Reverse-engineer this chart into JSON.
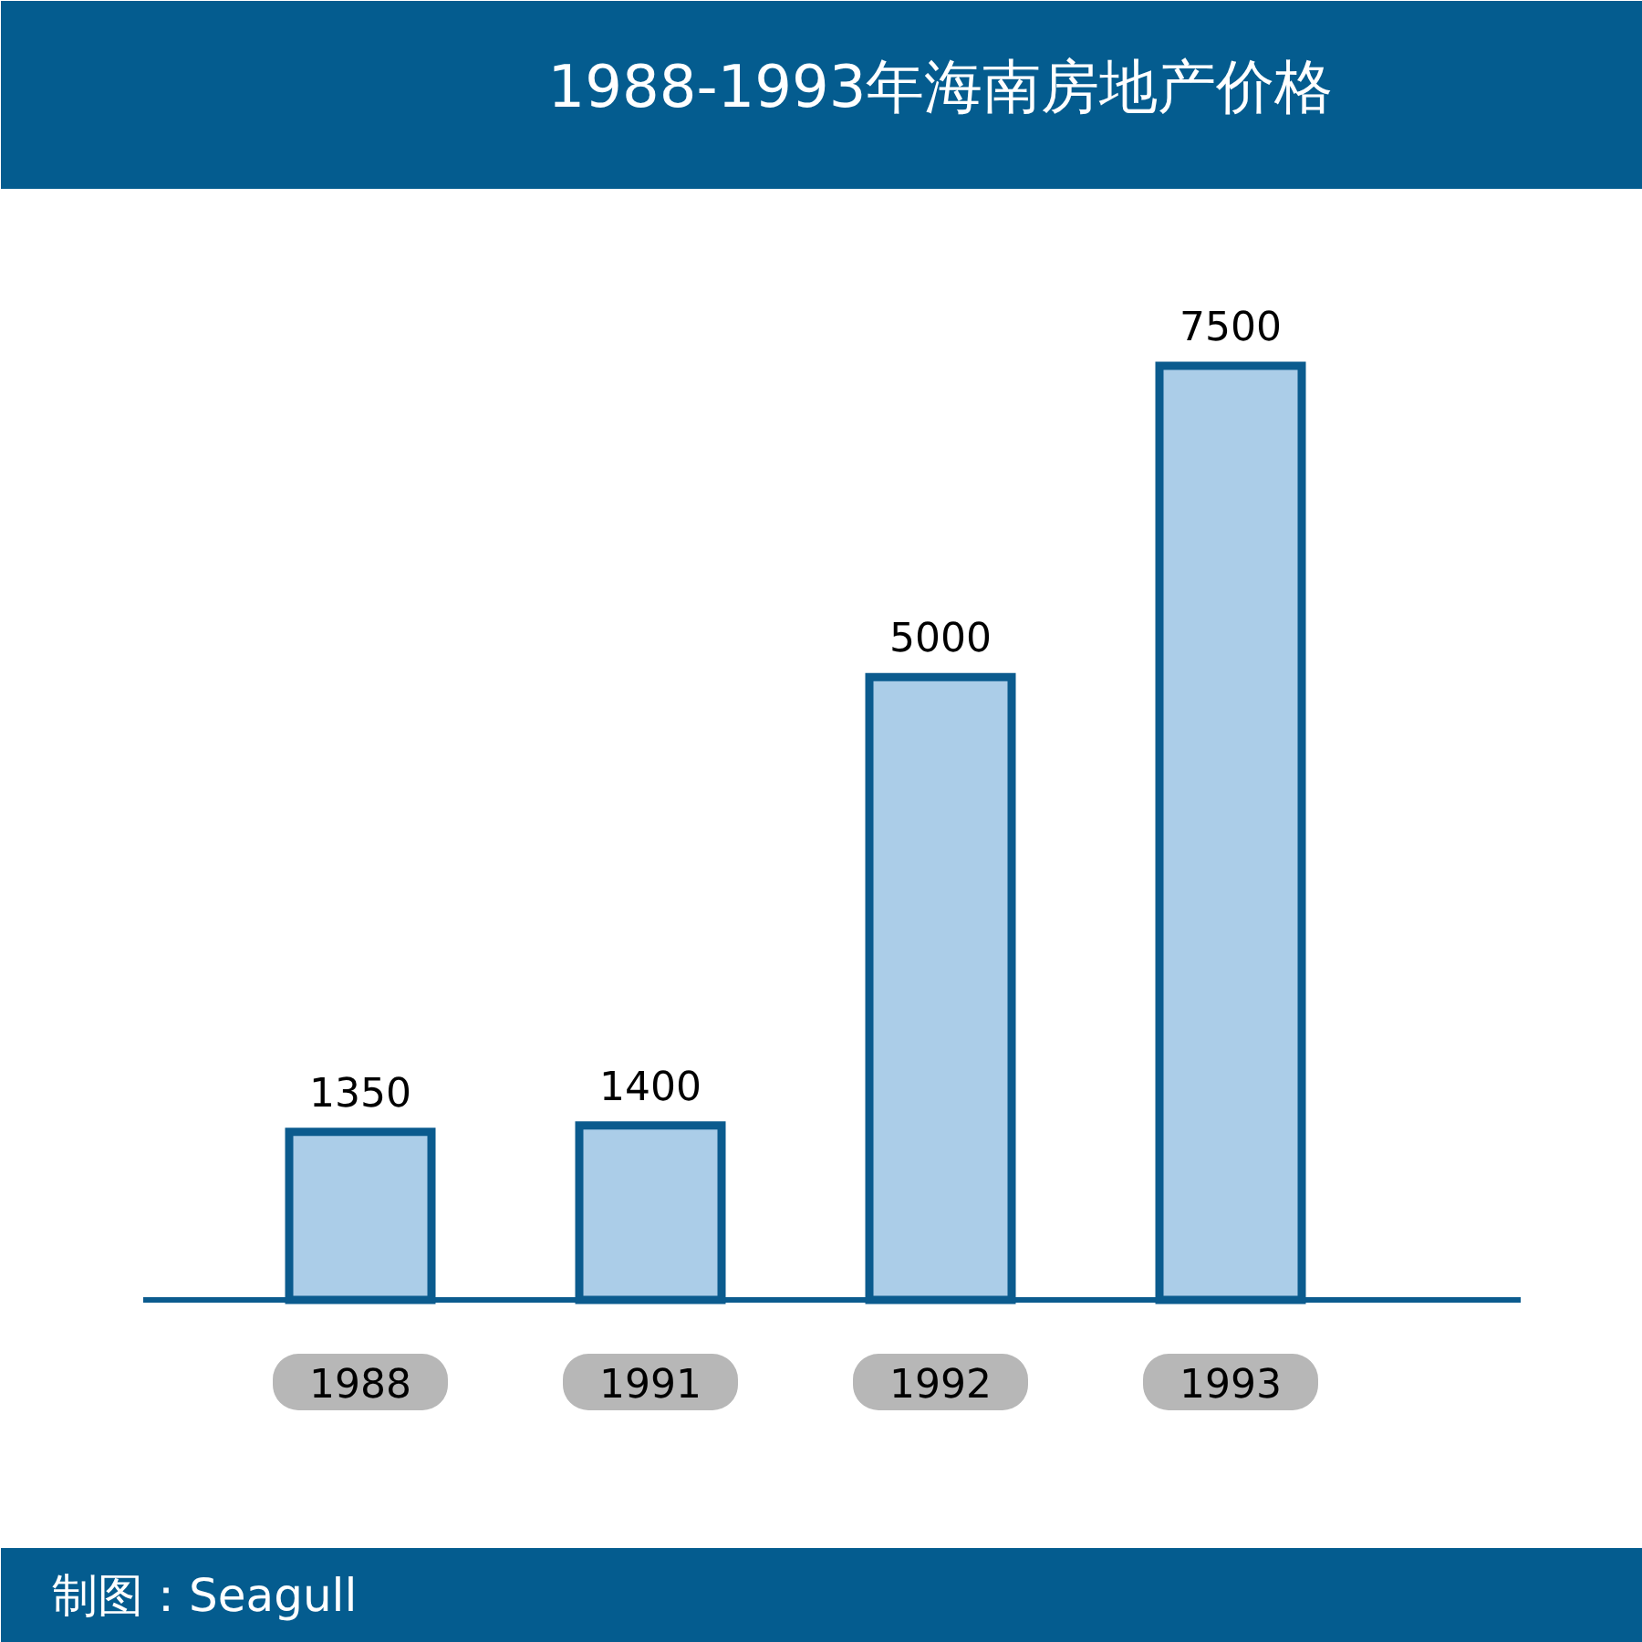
{
  "chart_data": {
    "type": "bar",
    "title": "1988-1993年海南房地产价格",
    "categories": [
      "1988",
      "1991",
      "1992",
      "1993"
    ],
    "values": [
      1350,
      1400,
      5000,
      7500
    ],
    "color": "#abcde8",
    "data_labels": true,
    "annotations": [
      "制图：Seagull"
    ]
  }
}
